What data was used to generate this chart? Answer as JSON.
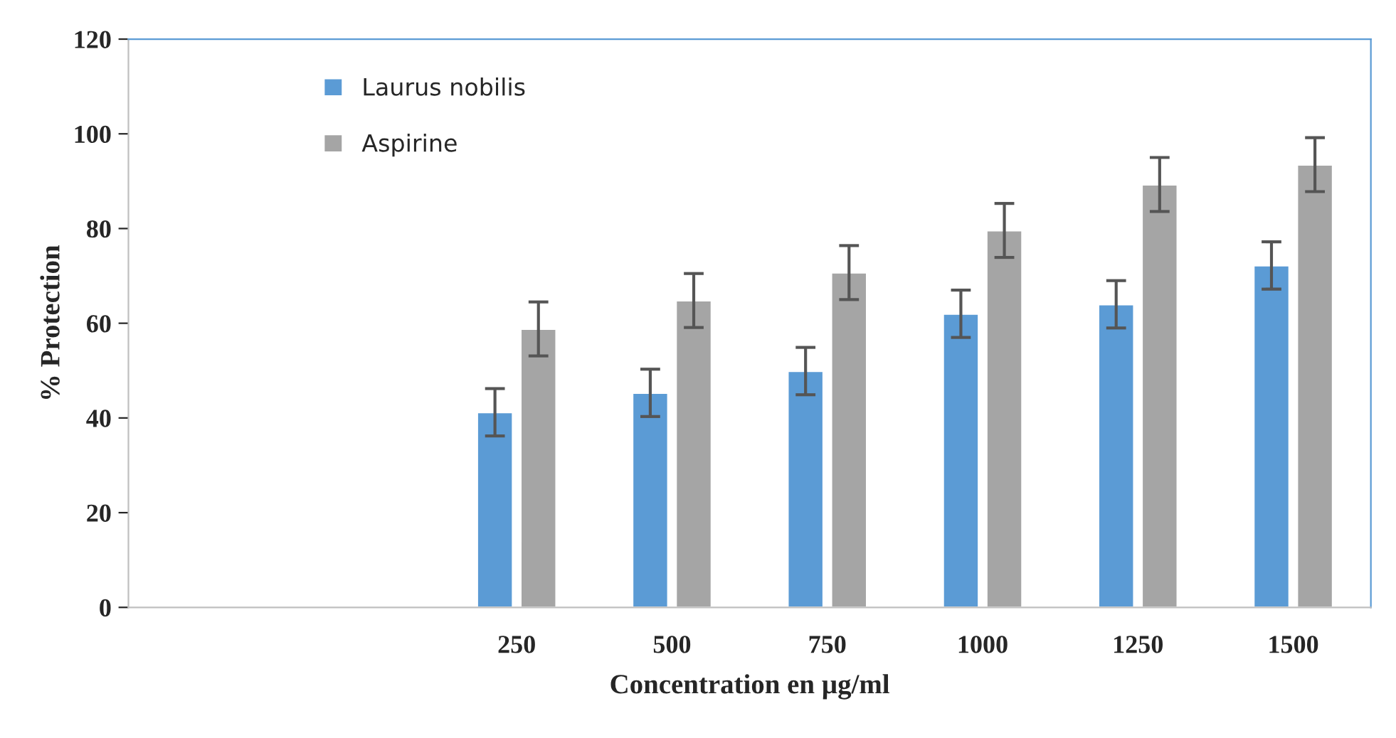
{
  "chart_data": {
    "type": "bar",
    "xlabel": "Concentration en µg/ml",
    "ylabel": "% Protection",
    "categories": [
      null,
      null,
      "250",
      "500",
      "750",
      "1000",
      "1250",
      "1500"
    ],
    "series": [
      {
        "name": "Laurus nobilis",
        "color": "#5b9bd5",
        "values": [
          null,
          null,
          41.2,
          45.3,
          49.9,
          62,
          64,
          72.2
        ],
        "errors": [
          null,
          null,
          5,
          5,
          5,
          5,
          5,
          5
        ]
      },
      {
        "name": "Aspirine",
        "color": "#a5a5a5",
        "values": [
          null,
          null,
          58.8,
          64.8,
          70.7,
          79.6,
          89.3,
          93.5
        ],
        "errors": [
          null,
          null,
          5.7,
          5.7,
          5.7,
          5.7,
          5.7,
          5.7
        ]
      }
    ],
    "ylim": [
      0,
      120
    ],
    "yticks": [
      0,
      20,
      40,
      60,
      80,
      100,
      120
    ],
    "grid": false,
    "legend": "top left"
  }
}
